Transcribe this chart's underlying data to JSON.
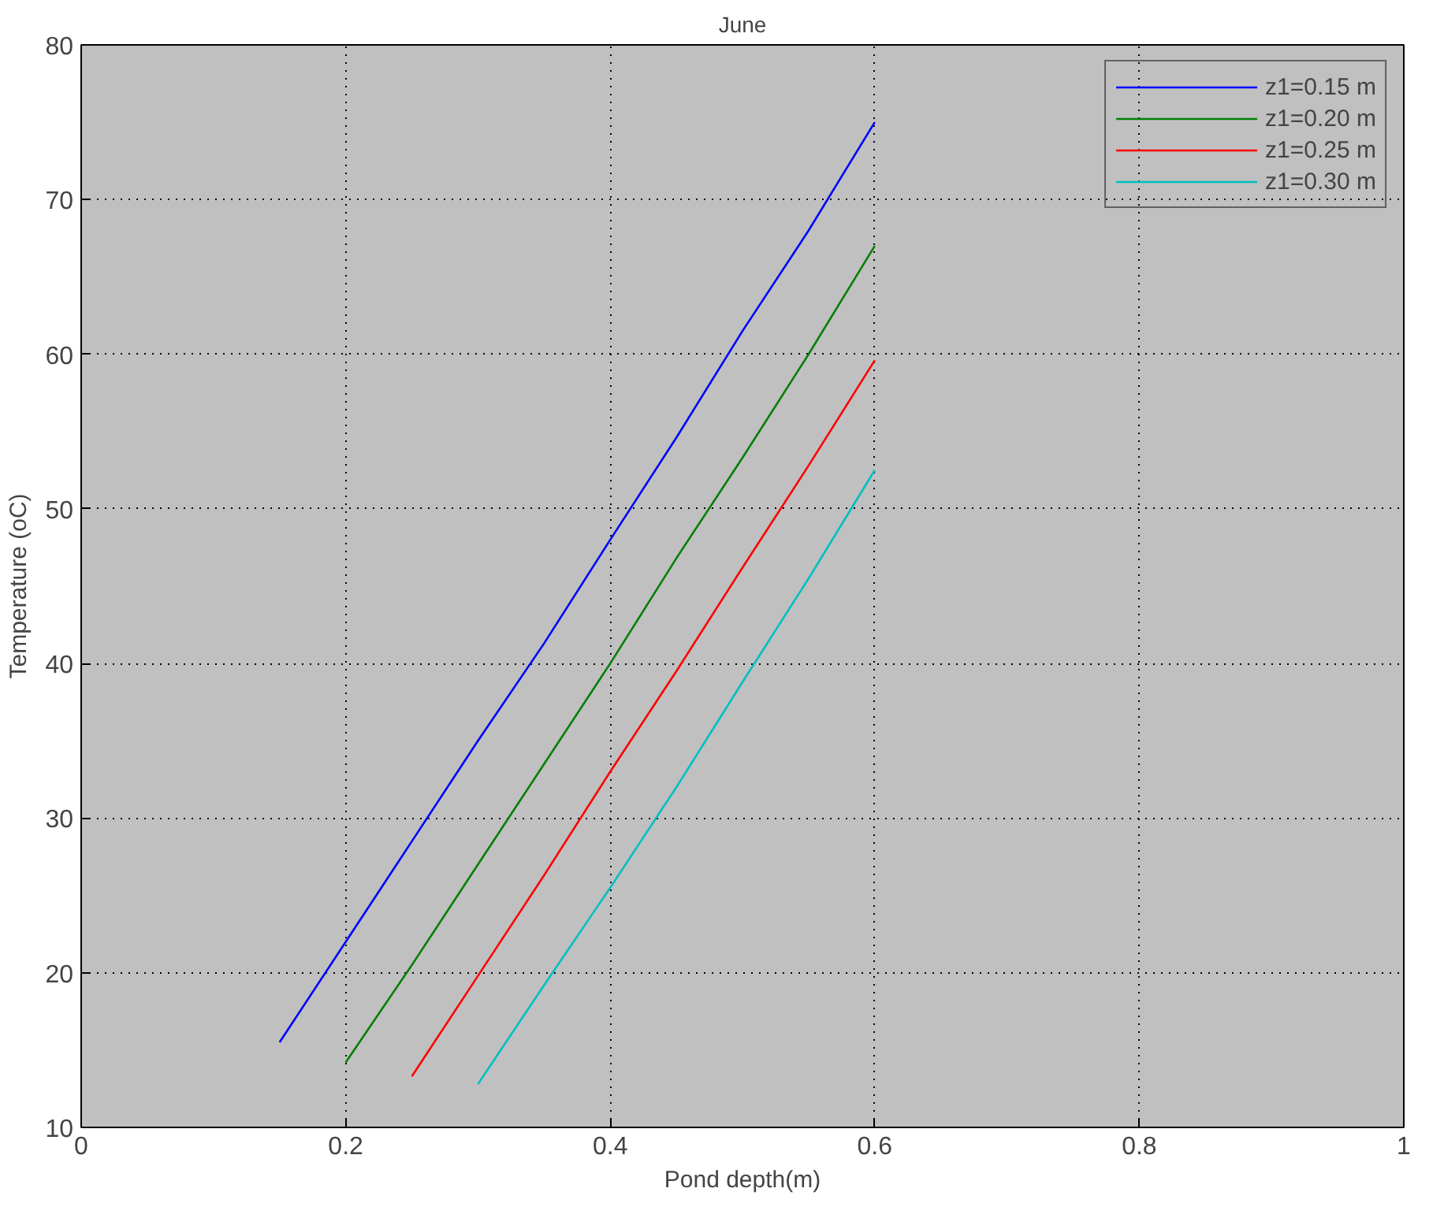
{
  "chart_data": {
    "type": "line",
    "title": "June",
    "xlabel": "Pond depth(m)",
    "ylabel": "Temperature (oC)",
    "xlim": [
      0,
      1
    ],
    "ylim": [
      10,
      80
    ],
    "xticks": [
      0,
      0.2,
      0.4,
      0.6,
      0.8,
      1
    ],
    "yticks": [
      10,
      20,
      30,
      40,
      50,
      60,
      70,
      80
    ],
    "grid": true,
    "legend": "top right",
    "line_style": "solid",
    "series": [
      {
        "name": "z1=0.15 m",
        "color": "#0000ff",
        "x": [
          0.15,
          0.2,
          0.25,
          0.3,
          0.35,
          0.4,
          0.45,
          0.5,
          0.55,
          0.6
        ],
        "values": [
          15.5,
          22,
          28.5,
          35,
          41.3,
          48,
          54.6,
          61.5,
          68,
          75
        ]
      },
      {
        "name": "z1=0.20 m",
        "color": "#008000",
        "x": [
          0.2,
          0.25,
          0.3,
          0.35,
          0.4,
          0.45,
          0.5,
          0.55,
          0.6
        ],
        "values": [
          14.2,
          20.5,
          27,
          33.5,
          40,
          46.8,
          53.3,
          60,
          67
        ]
      },
      {
        "name": "z1=0.25 m",
        "color": "#ff0000",
        "x": [
          0.25,
          0.3,
          0.35,
          0.4,
          0.45,
          0.5,
          0.55,
          0.6
        ],
        "values": [
          13.3,
          19.8,
          26.3,
          33,
          39.5,
          46.2,
          52.8,
          59.6
        ]
      },
      {
        "name": "z1=0.30 m",
        "color": "#00bfbf",
        "x": [
          0.3,
          0.35,
          0.4,
          0.45,
          0.5,
          0.55,
          0.6
        ],
        "values": [
          12.8,
          19.2,
          25.5,
          32,
          38.8,
          45.5,
          52.5
        ]
      }
    ]
  }
}
